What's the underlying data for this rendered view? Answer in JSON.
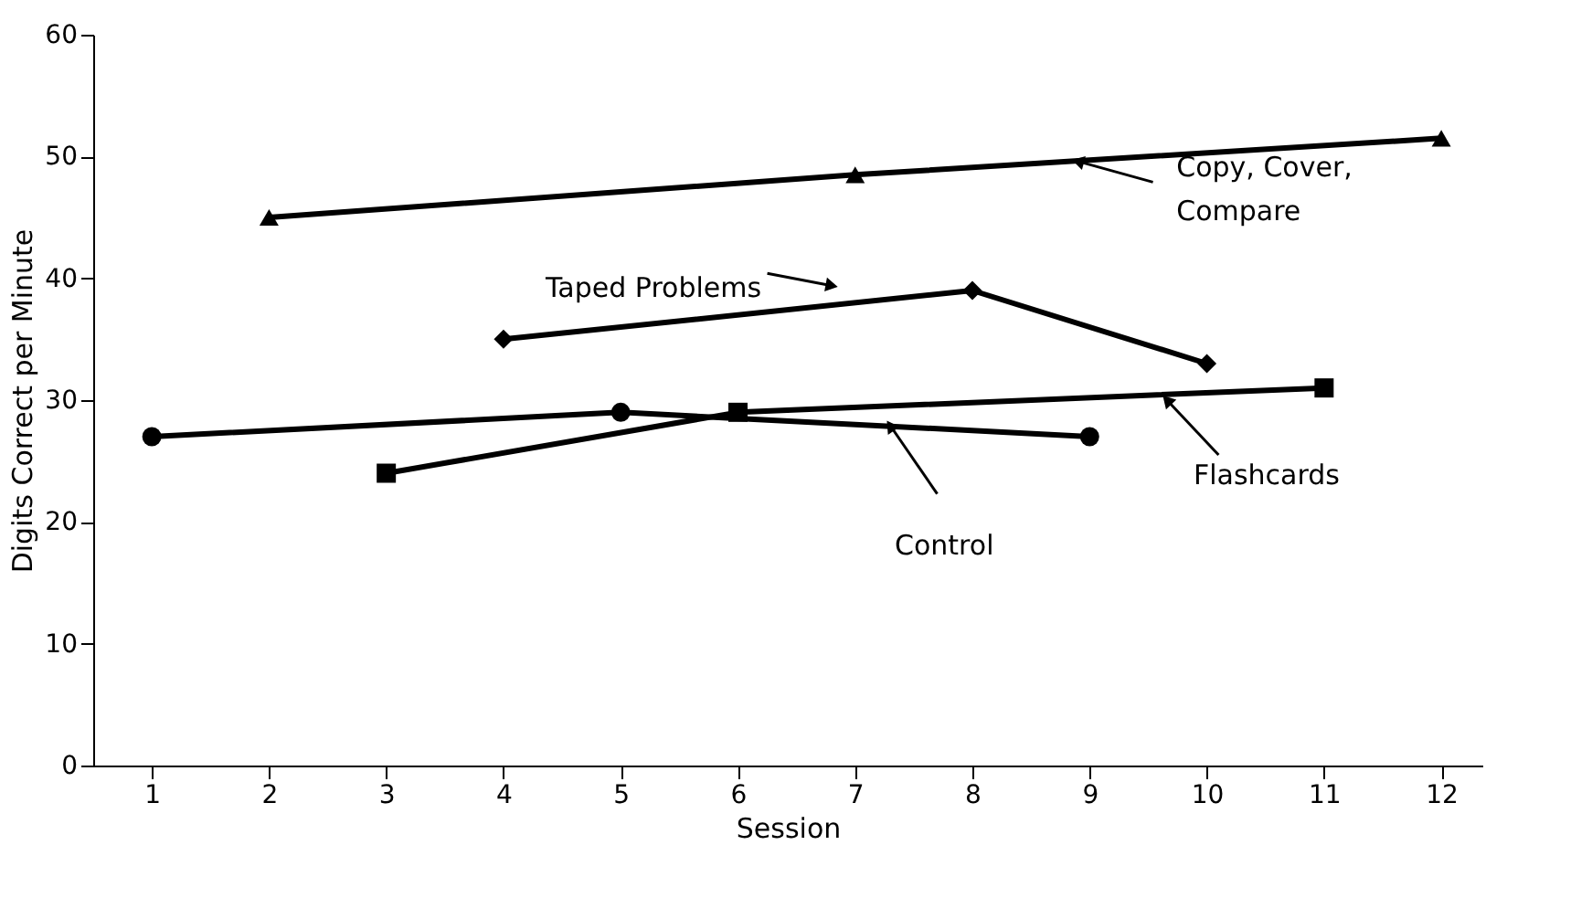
{
  "chart_data": {
    "type": "line",
    "xlabel": "Session",
    "ylabel": "Digits Correct per Minute",
    "xlim": [
      0.5,
      12.35
    ],
    "xticks": [
      1,
      2,
      3,
      4,
      5,
      6,
      7,
      8,
      9,
      10,
      11,
      12
    ],
    "ylim": [
      0,
      60
    ],
    "yticks": [
      0,
      10,
      20,
      30,
      40,
      50,
      60
    ],
    "grid": false,
    "line_style": "solid",
    "series": [
      {
        "color": "#000000",
        "marker": "triangle",
        "x": [
          2,
          7,
          12
        ],
        "values": [
          45,
          48.5,
          51.5
        ]
      },
      {
        "color": "#000000",
        "marker": "diamond",
        "x": [
          4,
          8,
          10
        ],
        "values": [
          35,
          39,
          33
        ]
      },
      {
        "color": "#000000",
        "marker": "circle",
        "x": [
          1,
          5,
          9
        ],
        "values": [
          27,
          29,
          27
        ]
      },
      {
        "color": "#000000",
        "marker": "square",
        "x": [
          3,
          6,
          11
        ],
        "values": [
          24,
          29,
          31
        ]
      }
    ],
    "annotations": [
      {
        "text": "Copy, Cover,\nCompare",
        "x": 8.9,
        "y": 49.6
      },
      {
        "text": "Taped Problems",
        "x": 6.8,
        "y": 39.4
      },
      {
        "text": "Control",
        "x": 7.3,
        "y": 27.9
      },
      {
        "text": "Flashcards",
        "x": 9.66,
        "y": 30
      }
    ]
  }
}
